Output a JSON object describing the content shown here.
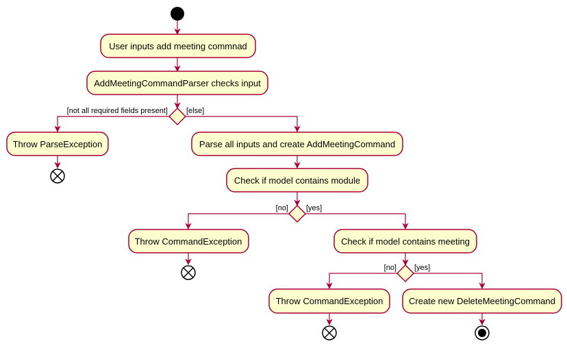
{
  "diagram": {
    "activities": {
      "user_inputs": "User inputs add meeting commnad",
      "parser_checks": "AddMeetingCommandParser checks input",
      "throw_parse": "Throw ParseException",
      "parse_all": "Parse all inputs and create AddMeetingCommand",
      "check_module": "Check if model contains module",
      "throw_cmd_1": "Throw CommandException",
      "check_meeting": "Check if model contains meeting",
      "throw_cmd_2": "Throw CommandException",
      "create_delete": "Create new DeleteMeetingCommand"
    },
    "guards": {
      "not_all_fields": "[not all required fields present]",
      "else": "[else]",
      "no_1": "[no]",
      "yes_1": "[yes]",
      "no_2": "[no]",
      "yes_2": "[yes]"
    },
    "colors": {
      "line": "#A80036",
      "fill": "#FEFECE",
      "start": "#000000"
    }
  }
}
